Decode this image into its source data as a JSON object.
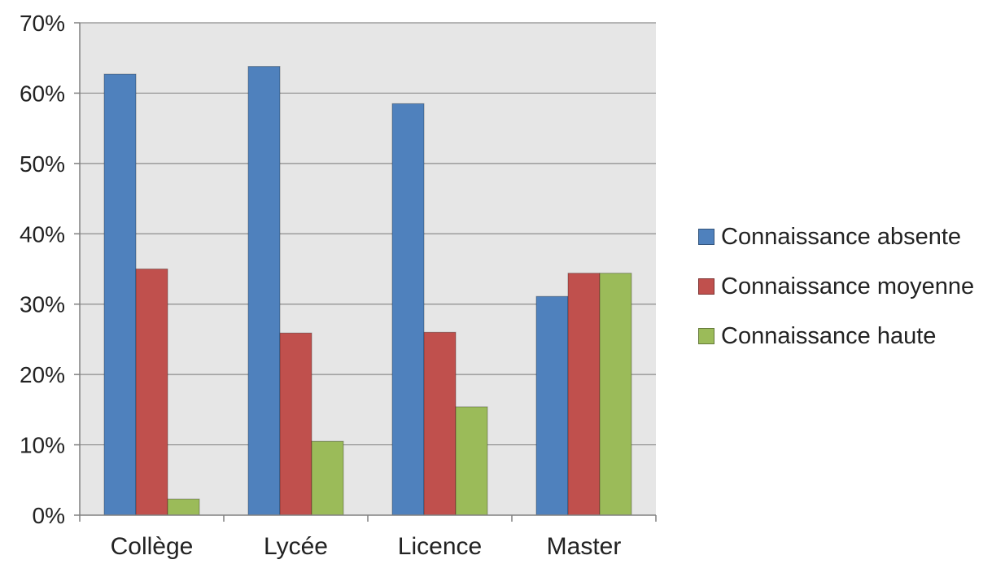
{
  "chart_data": {
    "type": "bar",
    "categories": [
      "Collège",
      "Lycée",
      "Licence",
      "Master"
    ],
    "series": [
      {
        "name": "Connaissance absente",
        "color": "#4F81BD",
        "values": [
          62.7,
          63.8,
          58.5,
          31.1
        ]
      },
      {
        "name": "Connaissance moyenne",
        "color": "#C0504D",
        "values": [
          35.0,
          25.9,
          26.0,
          34.4
        ]
      },
      {
        "name": "Connaissance haute",
        "color": "#9BBB59",
        "values": [
          2.3,
          10.5,
          15.4,
          34.4
        ]
      }
    ],
    "ylim": [
      0,
      70
    ],
    "yticks": [
      0,
      10,
      20,
      30,
      40,
      50,
      60,
      70
    ],
    "ytick_labels": [
      "0%",
      "10%",
      "20%",
      "30%",
      "40%",
      "50%",
      "60%",
      "70%"
    ],
    "grid": true,
    "plot_background": "#E6E6E6",
    "legend_position": "right",
    "title": "",
    "xlabel": "",
    "ylabel": ""
  }
}
